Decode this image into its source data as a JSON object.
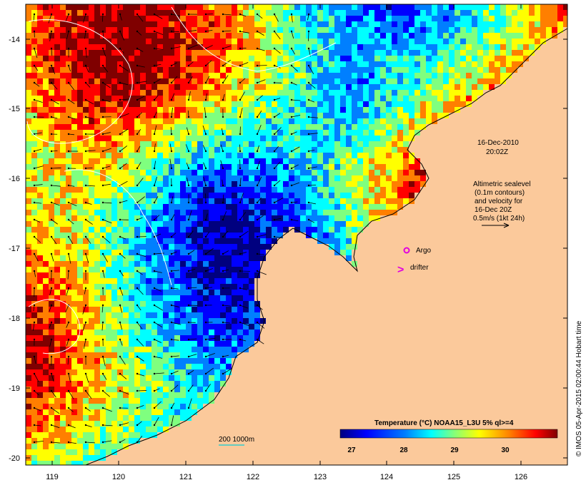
{
  "map": {
    "lat_labels": [
      "-14",
      "-15",
      "-16",
      "-17",
      "-18",
      "-19",
      "-20"
    ],
    "lon_labels": [
      "119",
      "120",
      "121",
      "122",
      "123",
      "124",
      "125",
      "126"
    ],
    "date_line1": "16-Dec-2010",
    "date_line2": "20:02Z",
    "altimetry_note": [
      "Altimetric sealevel",
      "(0.1m contours)",
      "and velocity for",
      "16-Dec 20Z",
      "0.5m/s (1kt 24h)"
    ],
    "argo_label": "Argo",
    "drifter_label": "drifter",
    "isobath_label": "200  1000m",
    "legend": {
      "title": "Temperature (°C) NOAA15_L3U 5% ql>=4",
      "ticks": [
        "27",
        "28",
        "29",
        "30"
      ]
    },
    "copyright": "© IMOS 05-Apr-2015 02:00:44 Hobart time",
    "colors": {
      "land": "#fbc99b",
      "argo": "#e000e0",
      "drifter": "#e000e0",
      "isobath": "#33cccc",
      "colormap": [
        "#00007f",
        "#0000ff",
        "#007fff",
        "#00ffff",
        "#7fff7f",
        "#ffff00",
        "#ff7f00",
        "#ff0000",
        "#7f0000"
      ]
    }
  }
}
